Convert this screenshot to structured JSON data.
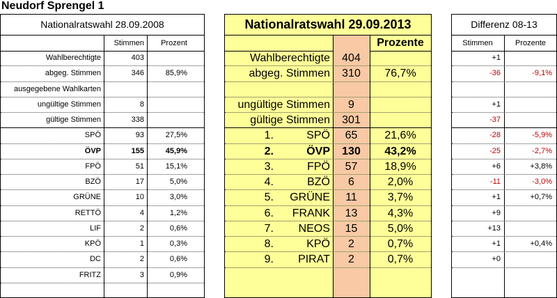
{
  "title": "Neudorf Sprengel 1",
  "left": {
    "header": "Nationalratswahl 28.09.2008",
    "col_stimmen": "Stimmen",
    "col_prozent": "Prozent",
    "rows": [
      {
        "label": "Wahlberechtigte",
        "stimmen": "403",
        "prozent": ""
      },
      {
        "label": "abgeg. Stimmen",
        "stimmen": "346",
        "prozent": "85,9%"
      },
      {
        "label": "ausgegebene Wahlkarten",
        "stimmen": "",
        "prozent": ""
      },
      {
        "label": "ungültige Stimmen",
        "stimmen": "8",
        "prozent": ""
      },
      {
        "label": "gültige Stimmen",
        "stimmen": "338",
        "prozent": ""
      },
      {
        "label": "SPÖ",
        "stimmen": "93",
        "prozent": "27,5%"
      },
      {
        "label": "ÖVP",
        "stimmen": "155",
        "prozent": "45,9%"
      },
      {
        "label": "FPÖ",
        "stimmen": "51",
        "prozent": "15,1%"
      },
      {
        "label": "BZÖ",
        "stimmen": "17",
        "prozent": "5,0%"
      },
      {
        "label": "GRÜNE",
        "stimmen": "10",
        "prozent": "3,0%"
      },
      {
        "label": "RETTÖ",
        "stimmen": "4",
        "prozent": "1,2%"
      },
      {
        "label": "LIF",
        "stimmen": "2",
        "prozent": "0,6%"
      },
      {
        "label": "KPÖ",
        "stimmen": "1",
        "prozent": "0,3%"
      },
      {
        "label": "DC",
        "stimmen": "2",
        "prozent": "0,6%"
      },
      {
        "label": "FRITZ",
        "stimmen": "3",
        "prozent": "0,9%"
      }
    ]
  },
  "mid": {
    "header": "Nationalratswahl 29.09.2013",
    "col_prozent": "Prozente",
    "rows": [
      {
        "label": "Wahlberechtigte",
        "stimmen": "404",
        "prozent": ""
      },
      {
        "label": "abgeg. Stimmen",
        "stimmen": "310",
        "prozent": "76,7%"
      },
      {
        "label": "",
        "stimmen": "",
        "prozent": ""
      },
      {
        "label": "ungültige Stimmen",
        "stimmen": "9",
        "prozent": ""
      },
      {
        "label": "gültige Stimmen",
        "stimmen": "301",
        "prozent": ""
      },
      {
        "rank": "1.",
        "label": "SPÖ",
        "stimmen": "65",
        "prozent": "21,6%"
      },
      {
        "rank": "2.",
        "label": "ÖVP",
        "stimmen": "130",
        "prozent": "43,2%"
      },
      {
        "rank": "3.",
        "label": "FPÖ",
        "stimmen": "57",
        "prozent": "18,9%"
      },
      {
        "rank": "4.",
        "label": "BZÖ",
        "stimmen": "6",
        "prozent": "2,0%"
      },
      {
        "rank": "5.",
        "label": "GRÜNE",
        "stimmen": "11",
        "prozent": "3,7%"
      },
      {
        "rank": "6.",
        "label": "FRANK",
        "stimmen": "13",
        "prozent": "4,3%"
      },
      {
        "rank": "7.",
        "label": "NEOS",
        "stimmen": "15",
        "prozent": "5,0%"
      },
      {
        "rank": "8.",
        "label": "KPÖ",
        "stimmen": "2",
        "prozent": "0,7%"
      },
      {
        "rank": "9.",
        "label": "PIRAT",
        "stimmen": "2",
        "prozent": "0,7%"
      }
    ]
  },
  "right": {
    "header": "Differenz 08-13",
    "col_stimmen": "Stimmen",
    "col_prozent": "Prozente",
    "rows": [
      {
        "stimmen": "+1",
        "prozent": ""
      },
      {
        "stimmen": "-36",
        "prozent": "-9,1%"
      },
      {
        "stimmen": "",
        "prozent": ""
      },
      {
        "stimmen": "+1",
        "prozent": ""
      },
      {
        "stimmen": "-37",
        "prozent": ""
      },
      {
        "stimmen": "-28",
        "prozent": "-5,9%"
      },
      {
        "stimmen": "-25",
        "prozent": "-2,7%"
      },
      {
        "stimmen": "+6",
        "prozent": "+3,8%"
      },
      {
        "stimmen": "-11",
        "prozent": "-3,0%"
      },
      {
        "stimmen": "+1",
        "prozent": "+0,7%"
      },
      {
        "stimmen": "+9",
        "prozent": ""
      },
      {
        "stimmen": "+13",
        "prozent": ""
      },
      {
        "stimmen": "+1",
        "prozent": "+0,4%"
      },
      {
        "stimmen": "+0",
        "prozent": ""
      }
    ]
  },
  "colors": {
    "mid_background": "#ffff99",
    "votes_cell": "#f8c9a4",
    "negative": "#c00000"
  }
}
